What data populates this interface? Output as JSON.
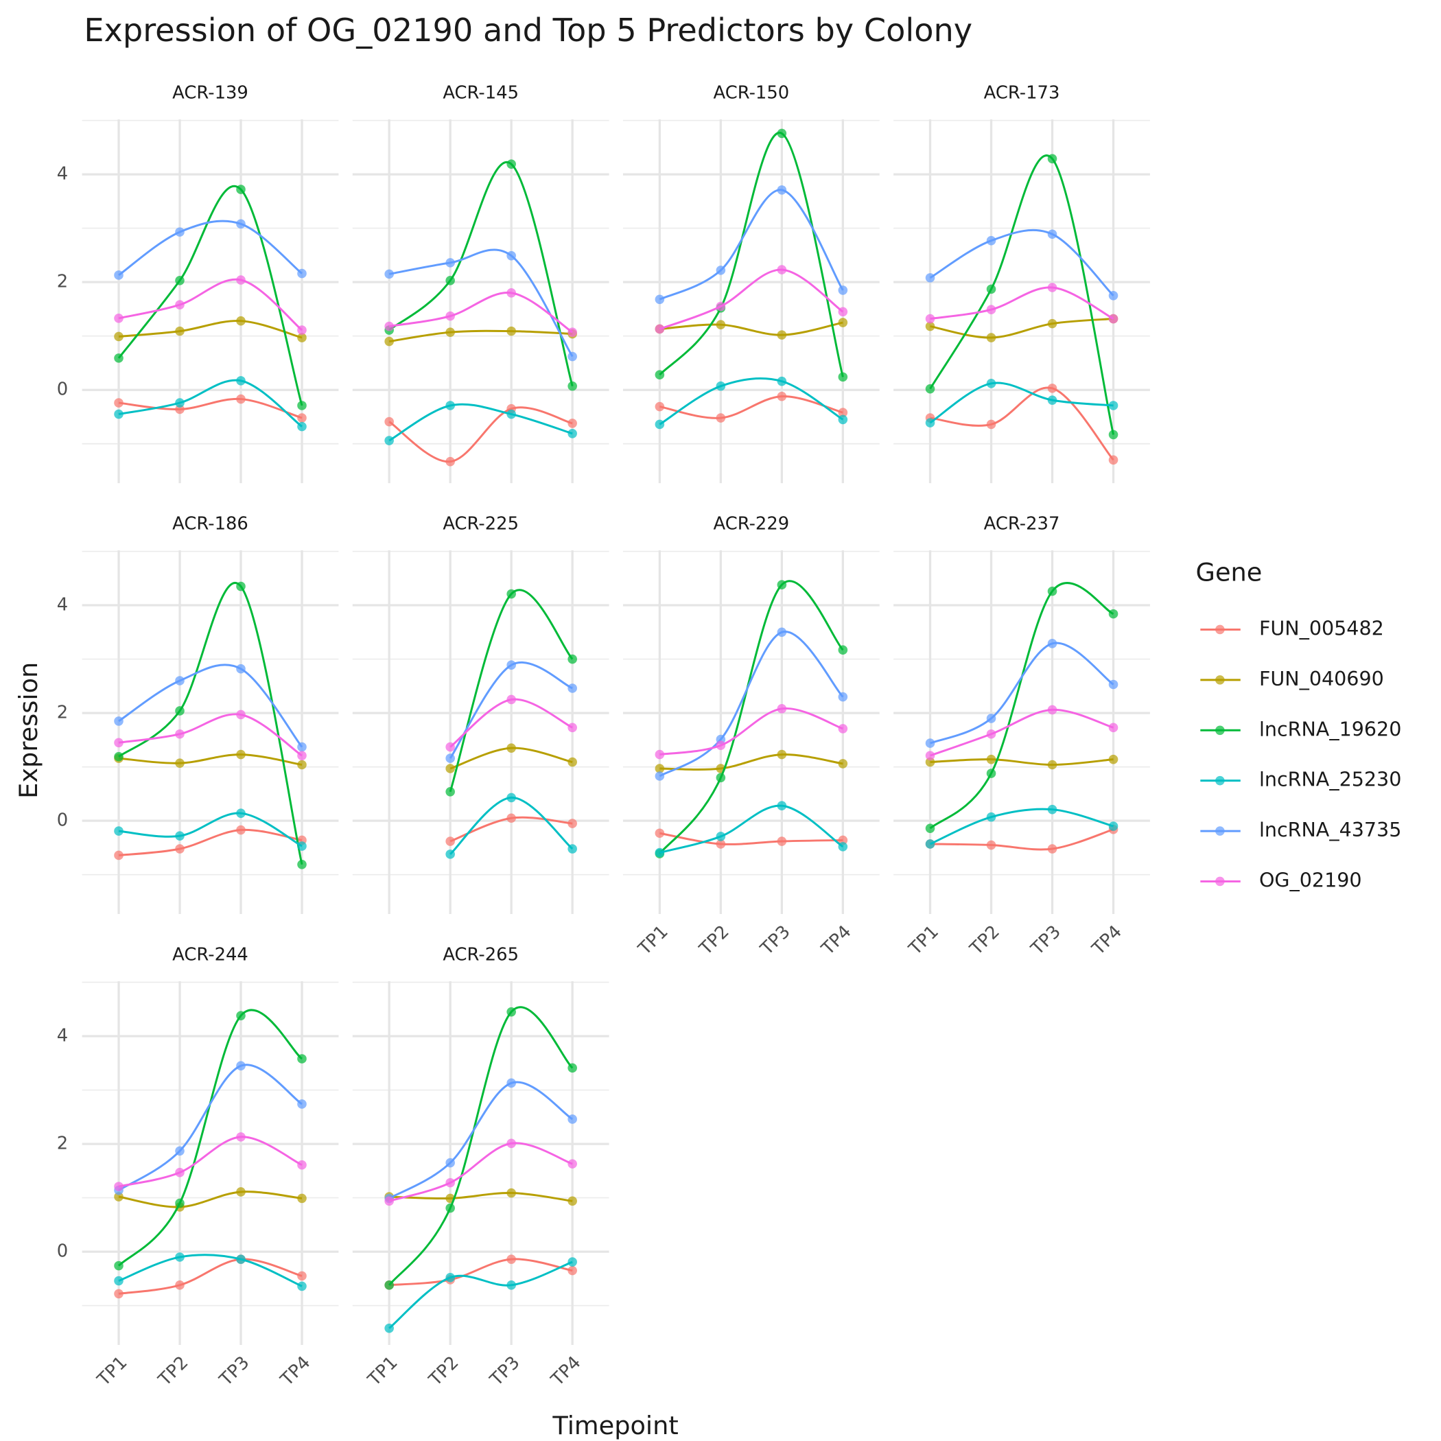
{
  "title": "Expression of OG_02190 and Top 5 Predictors by Colony",
  "x_label": "Timepoint",
  "y_label": "Expression",
  "legend_title": "Gene",
  "chart_data": [
    {
      "type": "line",
      "title": "ACR-139",
      "categories": [
        "TP1",
        "TP2",
        "TP3",
        "TP4"
      ],
      "ylim": [
        -1.73,
        5.02
      ],
      "yticks": [
        0,
        2,
        4
      ],
      "minor_yticks": [
        -1,
        1,
        3,
        5
      ],
      "grid": true,
      "series": [
        {
          "name": "FUN_005482",
          "color": "#F8766D",
          "values": [
            -0.24,
            -0.36,
            -0.17,
            -0.52
          ]
        },
        {
          "name": "FUN_040690",
          "color": "#B79F00",
          "values": [
            0.99,
            1.09,
            1.28,
            0.97
          ]
        },
        {
          "name": "lncRNA_19620",
          "color": "#00BA38",
          "values": [
            0.59,
            2.03,
            3.72,
            -0.29
          ]
        },
        {
          "name": "lncRNA_25230",
          "color": "#00BFC4",
          "values": [
            -0.45,
            -0.24,
            0.17,
            -0.68
          ]
        },
        {
          "name": "lncRNA_43735",
          "color": "#619CFF",
          "values": [
            2.13,
            2.93,
            3.08,
            2.16
          ]
        },
        {
          "name": "OG_02190",
          "color": "#F564E3",
          "values": [
            1.33,
            1.58,
            2.04,
            1.11
          ]
        }
      ]
    },
    {
      "type": "line",
      "title": "ACR-145",
      "categories": [
        "TP1",
        "TP2",
        "TP3",
        "TP4"
      ],
      "ylim": [
        -1.73,
        5.02
      ],
      "yticks": [
        0,
        2,
        4
      ],
      "minor_yticks": [
        -1,
        1,
        3,
        5
      ],
      "grid": true,
      "series": [
        {
          "name": "FUN_005482",
          "color": "#F8766D",
          "values": [
            -0.59,
            -1.33,
            -0.35,
            -0.62
          ]
        },
        {
          "name": "FUN_040690",
          "color": "#B79F00",
          "values": [
            0.9,
            1.07,
            1.09,
            1.04
          ]
        },
        {
          "name": "lncRNA_19620",
          "color": "#00BA38",
          "values": [
            1.11,
            2.03,
            4.19,
            0.07
          ]
        },
        {
          "name": "lncRNA_25230",
          "color": "#00BFC4",
          "values": [
            -0.94,
            -0.29,
            -0.45,
            -0.81
          ]
        },
        {
          "name": "lncRNA_43735",
          "color": "#619CFF",
          "values": [
            2.15,
            2.36,
            2.49,
            0.62
          ]
        },
        {
          "name": "OG_02190",
          "color": "#F564E3",
          "values": [
            1.18,
            1.37,
            1.8,
            1.07
          ]
        }
      ]
    },
    {
      "type": "line",
      "title": "ACR-150",
      "categories": [
        "TP1",
        "TP2",
        "TP3",
        "TP4"
      ],
      "ylim": [
        -1.73,
        5.02
      ],
      "yticks": [
        0,
        2,
        4
      ],
      "minor_yticks": [
        -1,
        1,
        3,
        5
      ],
      "grid": true,
      "series": [
        {
          "name": "FUN_005482",
          "color": "#F8766D",
          "values": [
            -0.31,
            -0.52,
            -0.12,
            -0.42
          ]
        },
        {
          "name": "FUN_040690",
          "color": "#B79F00",
          "values": [
            1.13,
            1.21,
            1.02,
            1.25
          ]
        },
        {
          "name": "lncRNA_19620",
          "color": "#00BA38",
          "values": [
            0.28,
            1.52,
            4.76,
            0.24
          ]
        },
        {
          "name": "lncRNA_25230",
          "color": "#00BFC4",
          "values": [
            -0.64,
            0.07,
            0.16,
            -0.55
          ]
        },
        {
          "name": "lncRNA_43735",
          "color": "#619CFF",
          "values": [
            1.68,
            2.22,
            3.71,
            1.85
          ]
        },
        {
          "name": "OG_02190",
          "color": "#F564E3",
          "values": [
            1.13,
            1.55,
            2.23,
            1.45
          ]
        }
      ]
    },
    {
      "type": "line",
      "title": "ACR-173",
      "categories": [
        "TP1",
        "TP2",
        "TP3",
        "TP4"
      ],
      "ylim": [
        -1.73,
        5.02
      ],
      "yticks": [
        0,
        2,
        4
      ],
      "minor_yticks": [
        -1,
        1,
        3,
        5
      ],
      "grid": true,
      "series": [
        {
          "name": "FUN_005482",
          "color": "#F8766D",
          "values": [
            -0.52,
            -0.64,
            0.03,
            -1.3
          ]
        },
        {
          "name": "FUN_040690",
          "color": "#B79F00",
          "values": [
            1.18,
            0.97,
            1.23,
            1.32
          ]
        },
        {
          "name": "lncRNA_19620",
          "color": "#00BA38",
          "values": [
            0.02,
            1.87,
            4.29,
            -0.83
          ]
        },
        {
          "name": "lncRNA_25230",
          "color": "#00BFC4",
          "values": [
            -0.61,
            0.12,
            -0.19,
            -0.29
          ]
        },
        {
          "name": "lncRNA_43735",
          "color": "#619CFF",
          "values": [
            2.08,
            2.77,
            2.89,
            1.75
          ]
        },
        {
          "name": "OG_02190",
          "color": "#F564E3",
          "values": [
            1.32,
            1.49,
            1.9,
            1.32
          ]
        }
      ]
    },
    {
      "type": "line",
      "title": "ACR-186",
      "categories": [
        "TP1",
        "TP2",
        "TP3",
        "TP4"
      ],
      "ylim": [
        -1.73,
        5.02
      ],
      "yticks": [
        0,
        2,
        4
      ],
      "minor_yticks": [
        -1,
        1,
        3,
        5
      ],
      "grid": true,
      "series": [
        {
          "name": "FUN_005482",
          "color": "#F8766D",
          "values": [
            -0.64,
            -0.52,
            -0.17,
            -0.36
          ]
        },
        {
          "name": "FUN_040690",
          "color": "#B79F00",
          "values": [
            1.16,
            1.07,
            1.23,
            1.04
          ]
        },
        {
          "name": "lncRNA_19620",
          "color": "#00BA38",
          "values": [
            1.19,
            2.04,
            4.35,
            -0.81
          ]
        },
        {
          "name": "lncRNA_25230",
          "color": "#00BFC4",
          "values": [
            -0.19,
            -0.28,
            0.14,
            -0.47
          ]
        },
        {
          "name": "lncRNA_43735",
          "color": "#619CFF",
          "values": [
            1.85,
            2.6,
            2.82,
            1.37
          ]
        },
        {
          "name": "OG_02190",
          "color": "#F564E3",
          "values": [
            1.45,
            1.61,
            1.97,
            1.21
          ]
        }
      ]
    },
    {
      "type": "line",
      "title": "ACR-225",
      "categories": [
        "TP1",
        "TP2",
        "TP3",
        "TP4"
      ],
      "ylim": [
        -1.73,
        5.02
      ],
      "yticks": [
        0,
        2,
        4
      ],
      "minor_yticks": [
        -1,
        1,
        3,
        5
      ],
      "grid": true,
      "series": [
        {
          "name": "FUN_005482",
          "color": "#F8766D",
          "values": [
            null,
            -0.38,
            0.05,
            -0.05
          ]
        },
        {
          "name": "FUN_040690",
          "color": "#B79F00",
          "values": [
            null,
            0.97,
            1.35,
            1.09
          ]
        },
        {
          "name": "lncRNA_19620",
          "color": "#00BA38",
          "values": [
            null,
            0.54,
            4.21,
            3.0
          ]
        },
        {
          "name": "lncRNA_25230",
          "color": "#00BFC4",
          "values": [
            null,
            -0.62,
            0.43,
            -0.52
          ]
        },
        {
          "name": "lncRNA_43735",
          "color": "#619CFF",
          "values": [
            null,
            1.16,
            2.89,
            2.46
          ]
        },
        {
          "name": "OG_02190",
          "color": "#F564E3",
          "values": [
            null,
            1.37,
            2.25,
            1.73
          ]
        }
      ]
    },
    {
      "type": "line",
      "title": "ACR-229",
      "categories": [
        "TP1",
        "TP2",
        "TP3",
        "TP4"
      ],
      "ylim": [
        -1.73,
        5.02
      ],
      "yticks": [
        0,
        2,
        4
      ],
      "minor_yticks": [
        -1,
        1,
        3,
        5
      ],
      "grid": true,
      "series": [
        {
          "name": "FUN_005482",
          "color": "#F8766D",
          "values": [
            -0.23,
            -0.43,
            -0.38,
            -0.36
          ]
        },
        {
          "name": "FUN_040690",
          "color": "#B79F00",
          "values": [
            0.97,
            0.97,
            1.23,
            1.06
          ]
        },
        {
          "name": "lncRNA_19620",
          "color": "#00BA38",
          "values": [
            -0.61,
            0.8,
            4.38,
            3.17
          ]
        },
        {
          "name": "lncRNA_25230",
          "color": "#00BFC4",
          "values": [
            -0.59,
            -0.29,
            0.28,
            -0.48
          ]
        },
        {
          "name": "lncRNA_43735",
          "color": "#619CFF",
          "values": [
            0.83,
            1.51,
            3.5,
            2.3
          ]
        },
        {
          "name": "OG_02190",
          "color": "#F564E3",
          "values": [
            1.23,
            1.4,
            2.08,
            1.71
          ]
        }
      ]
    },
    {
      "type": "line",
      "title": "ACR-237",
      "categories": [
        "TP1",
        "TP2",
        "TP3",
        "TP4"
      ],
      "ylim": [
        -1.73,
        5.02
      ],
      "yticks": [
        0,
        2,
        4
      ],
      "minor_yticks": [
        -1,
        1,
        3,
        5
      ],
      "grid": true,
      "series": [
        {
          "name": "FUN_005482",
          "color": "#F8766D",
          "values": [
            -0.43,
            -0.45,
            -0.52,
            -0.16
          ]
        },
        {
          "name": "FUN_040690",
          "color": "#B79F00",
          "values": [
            1.09,
            1.14,
            1.04,
            1.14
          ]
        },
        {
          "name": "lncRNA_19620",
          "color": "#00BA38",
          "values": [
            -0.14,
            0.88,
            4.26,
            3.84
          ]
        },
        {
          "name": "lncRNA_25230",
          "color": "#00BFC4",
          "values": [
            -0.43,
            0.07,
            0.21,
            -0.1
          ]
        },
        {
          "name": "lncRNA_43735",
          "color": "#619CFF",
          "values": [
            1.44,
            1.9,
            3.29,
            2.53
          ]
        },
        {
          "name": "OG_02190",
          "color": "#F564E3",
          "values": [
            1.21,
            1.61,
            2.06,
            1.73
          ]
        }
      ]
    },
    {
      "type": "line",
      "title": "ACR-244",
      "categories": [
        "TP1",
        "TP2",
        "TP3",
        "TP4"
      ],
      "ylim": [
        -1.73,
        5.02
      ],
      "yticks": [
        0,
        2,
        4
      ],
      "minor_yticks": [
        -1,
        1,
        3,
        5
      ],
      "grid": true,
      "series": [
        {
          "name": "FUN_005482",
          "color": "#F8766D",
          "values": [
            -0.78,
            -0.62,
            -0.14,
            -0.45
          ]
        },
        {
          "name": "FUN_040690",
          "color": "#B79F00",
          "values": [
            1.02,
            0.83,
            1.11,
            0.99
          ]
        },
        {
          "name": "lncRNA_19620",
          "color": "#00BA38",
          "values": [
            -0.26,
            0.9,
            4.38,
            3.58
          ]
        },
        {
          "name": "lncRNA_25230",
          "color": "#00BFC4",
          "values": [
            -0.54,
            -0.1,
            -0.14,
            -0.64
          ]
        },
        {
          "name": "lncRNA_43735",
          "color": "#619CFF",
          "values": [
            1.14,
            1.87,
            3.45,
            2.74
          ]
        },
        {
          "name": "OG_02190",
          "color": "#F564E3",
          "values": [
            1.21,
            1.47,
            2.13,
            1.61
          ]
        }
      ]
    },
    {
      "type": "line",
      "title": "ACR-265",
      "categories": [
        "TP1",
        "TP2",
        "TP3",
        "TP4"
      ],
      "ylim": [
        -1.73,
        5.02
      ],
      "yticks": [
        0,
        2,
        4
      ],
      "minor_yticks": [
        -1,
        1,
        3,
        5
      ],
      "grid": true,
      "series": [
        {
          "name": "FUN_005482",
          "color": "#F8766D",
          "values": [
            -0.62,
            -0.52,
            -0.14,
            -0.35
          ]
        },
        {
          "name": "FUN_040690",
          "color": "#B79F00",
          "values": [
            1.02,
            0.99,
            1.09,
            0.94
          ]
        },
        {
          "name": "lncRNA_19620",
          "color": "#00BA38",
          "values": [
            -0.62,
            0.81,
            4.45,
            3.41
          ]
        },
        {
          "name": "lncRNA_25230",
          "color": "#00BFC4",
          "values": [
            -1.42,
            -0.48,
            -0.62,
            -0.19
          ]
        },
        {
          "name": "lncRNA_43735",
          "color": "#619CFF",
          "values": [
            0.99,
            1.65,
            3.13,
            2.46
          ]
        },
        {
          "name": "OG_02190",
          "color": "#F564E3",
          "values": [
            0.94,
            1.28,
            2.01,
            1.63
          ]
        }
      ]
    }
  ]
}
